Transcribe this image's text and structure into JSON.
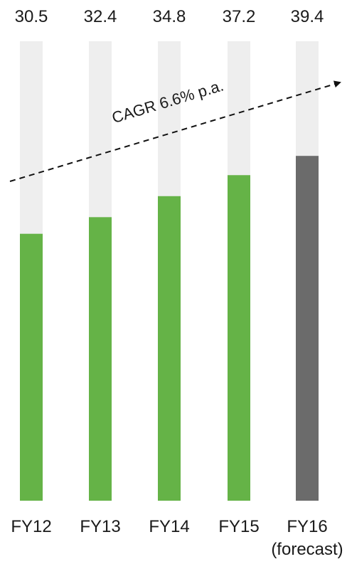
{
  "chart_data": {
    "type": "bar",
    "categories": [
      "FY12",
      "FY13",
      "FY14",
      "FY15",
      "FY16"
    ],
    "category_sublabels": [
      "",
      "",
      "",
      "",
      "(forecast)"
    ],
    "values": [
      30.5,
      32.4,
      34.8,
      37.2,
      39.4
    ],
    "value_labels": [
      "30.5",
      "32.4",
      "34.8",
      "37.2",
      "39.4"
    ],
    "title": "",
    "xlabel": "",
    "ylabel": "",
    "ylim": [
      0,
      52.5
    ],
    "grid": false,
    "legend": "none",
    "annotation": {
      "text": "CAGR 6.6% p.a.",
      "style": "dashed-arrow",
      "direction": "up-right"
    },
    "colors": {
      "actual": "#65b347",
      "forecast": "#6b6b6b",
      "track": "#eeeeee",
      "text": "#1a1a1a",
      "arrow": "#111111"
    }
  }
}
